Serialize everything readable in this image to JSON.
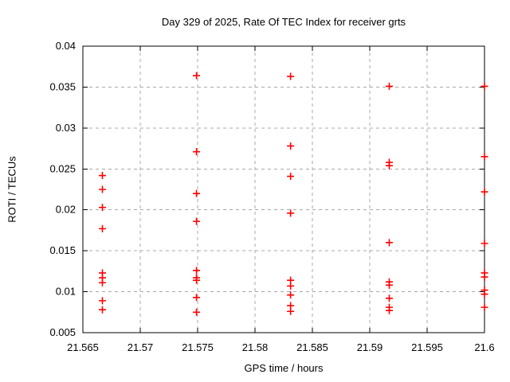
{
  "page": {
    "background": "#ffffff"
  },
  "chart_data": {
    "type": "scatter",
    "title": "Day 329 of 2025, Rate Of TEC Index for receiver grts",
    "xlabel": "GPS time / hours",
    "ylabel": "ROTI / TECUs",
    "xlim": [
      21.565,
      21.6
    ],
    "ylim": [
      0.005,
      0.04
    ],
    "xticks": {
      "values": [
        21.565,
        21.57,
        21.575,
        21.58,
        21.585,
        21.59,
        21.595,
        21.6
      ],
      "labels": [
        "21.565",
        "21.57",
        "21.575",
        "21.58",
        "21.585",
        "21.59",
        "21.595",
        "21.6"
      ]
    },
    "yticks": {
      "values": [
        0.005,
        0.01,
        0.015,
        0.02,
        0.025,
        0.03,
        0.035,
        0.04
      ],
      "labels": [
        "0.005",
        "0.01",
        "0.015",
        "0.02",
        "0.025",
        "0.03",
        "0.035",
        "0.04"
      ]
    },
    "grid": {
      "show": true,
      "color": "#a8a8a8",
      "dash": "4 4"
    },
    "axes_color": "#000000",
    "legend": "none",
    "series": [
      {
        "name": "ROTI",
        "marker": "plus",
        "color": "#ff0000",
        "marker_size": 9,
        "points": [
          [
            21.5667,
            0.0242
          ],
          [
            21.5667,
            0.0225
          ],
          [
            21.5667,
            0.0203
          ],
          [
            21.5667,
            0.0177
          ],
          [
            21.5667,
            0.0123
          ],
          [
            21.5667,
            0.0117
          ],
          [
            21.5667,
            0.0111
          ],
          [
            21.5667,
            0.0089
          ],
          [
            21.5667,
            0.0078
          ],
          [
            21.5749,
            0.0364
          ],
          [
            21.5749,
            0.0271
          ],
          [
            21.5749,
            0.022
          ],
          [
            21.5749,
            0.0186
          ],
          [
            21.5749,
            0.0126
          ],
          [
            21.5749,
            0.0117
          ],
          [
            21.5749,
            0.0114
          ],
          [
            21.5749,
            0.0093
          ],
          [
            21.5749,
            0.0075
          ],
          [
            21.5831,
            0.0363
          ],
          [
            21.5831,
            0.0278
          ],
          [
            21.5831,
            0.0241
          ],
          [
            21.5831,
            0.0196
          ],
          [
            21.5831,
            0.0114
          ],
          [
            21.5831,
            0.0107
          ],
          [
            21.5831,
            0.0096
          ],
          [
            21.5831,
            0.0083
          ],
          [
            21.5831,
            0.0076
          ],
          [
            21.5917,
            0.0351
          ],
          [
            21.5917,
            0.0258
          ],
          [
            21.5917,
            0.0254
          ],
          [
            21.5917,
            0.016
          ],
          [
            21.5917,
            0.0112
          ],
          [
            21.5917,
            0.0108
          ],
          [
            21.5917,
            0.0092
          ],
          [
            21.5917,
            0.0081
          ],
          [
            21.5917,
            0.0077
          ],
          [
            21.6,
            0.0351
          ],
          [
            21.6,
            0.0265
          ],
          [
            21.6,
            0.0222
          ],
          [
            21.6,
            0.0159
          ],
          [
            21.6,
            0.0123
          ],
          [
            21.6,
            0.0118
          ],
          [
            21.6,
            0.0102
          ],
          [
            21.6,
            0.0097
          ],
          [
            21.6,
            0.0081
          ]
        ]
      }
    ]
  }
}
